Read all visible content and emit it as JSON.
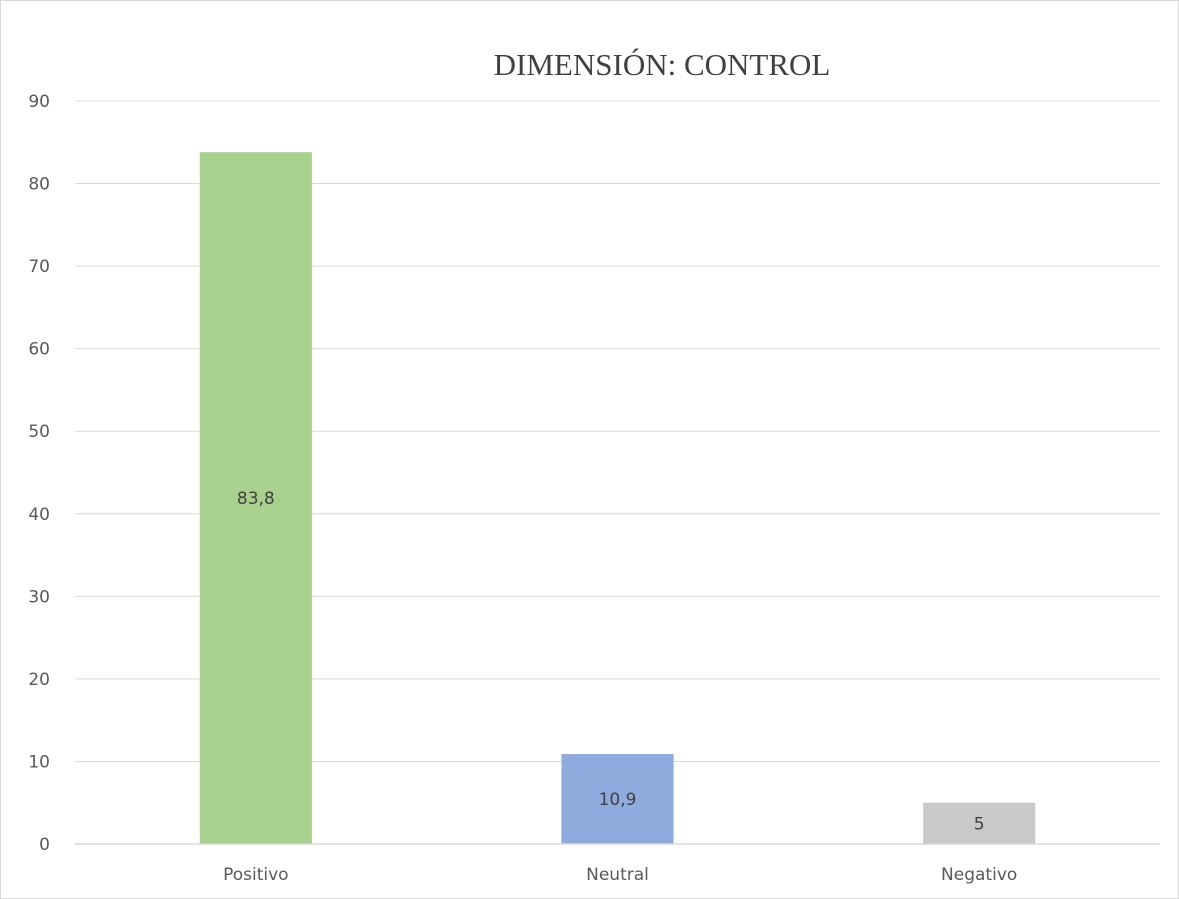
{
  "chart_data": {
    "type": "bar",
    "title": "DIMENSIÓN: CONTROL",
    "categories": [
      "Positivo",
      "Neutral",
      "Negativo"
    ],
    "values": [
      83.8,
      10.9,
      5
    ],
    "data_labels": [
      "83,8",
      "10,9",
      "5"
    ],
    "colors": [
      "#a9d18e",
      "#8faadc",
      "#c9c9c9"
    ],
    "ylim": [
      0,
      90
    ],
    "yticks": [
      0,
      10,
      20,
      30,
      40,
      50,
      60,
      70,
      80,
      90
    ],
    "grid": true,
    "legend": "none",
    "xlabel": "",
    "ylabel": ""
  }
}
